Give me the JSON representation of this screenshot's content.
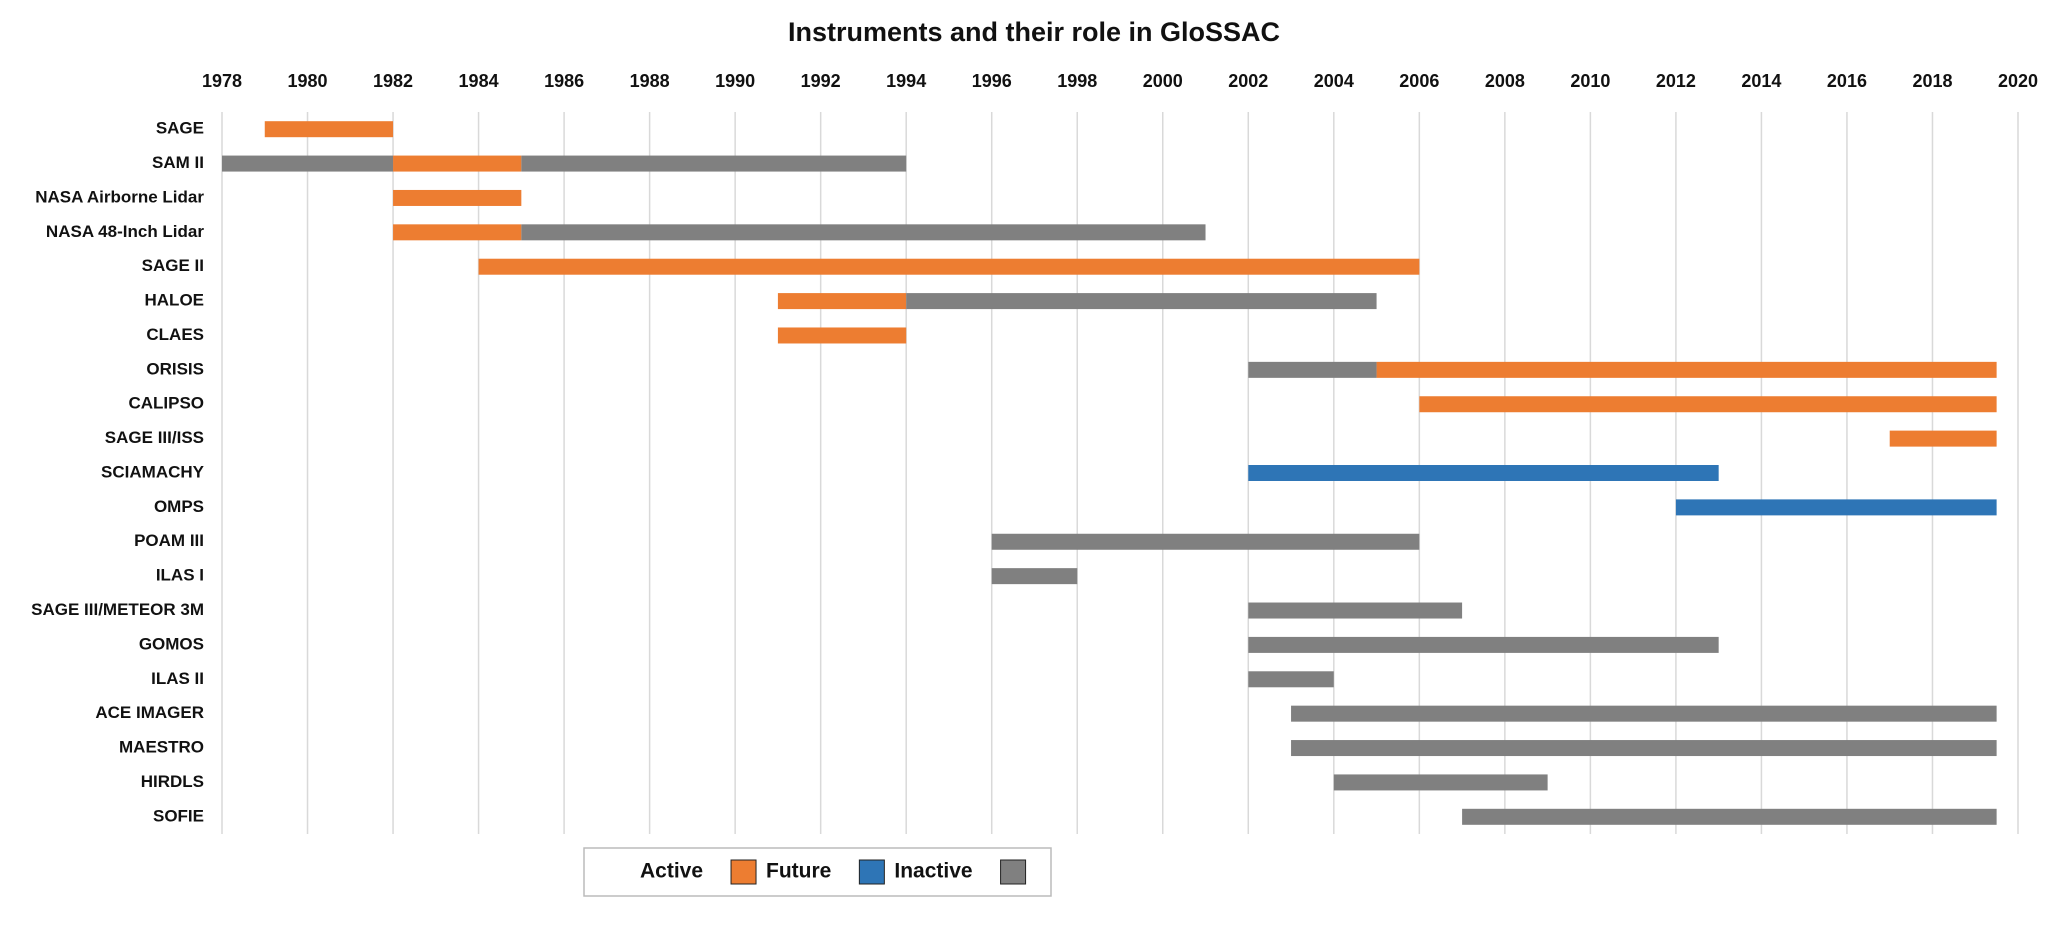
{
  "chart_data": {
    "type": "gantt",
    "title": "Instruments and their role in GloSSAC",
    "categories": [
      "SAGE",
      "SAM II",
      "NASA Airborne Lidar",
      "NASA 48-Inch Lidar",
      "SAGE II",
      "HALOE",
      "CLAES",
      "ORISIS",
      "CALIPSO",
      "SAGE III/ISS",
      "SCIAMACHY",
      "OMPS",
      "POAM III",
      "ILAS I",
      "SAGE III/METEOR 3M",
      "GOMOS",
      "ILAS II",
      "ACE IMAGER",
      "MAESTRO",
      "HIRDLS",
      "SOFIE"
    ],
    "series": [
      {
        "name": "Active",
        "color": "#ED7D31",
        "values": [
          [
            [
              1979,
              1982
            ]
          ],
          [
            [
              1982,
              1985
            ]
          ],
          [
            [
              1982,
              1985
            ]
          ],
          [
            [
              1982,
              1985
            ]
          ],
          [
            [
              1984,
              2006
            ]
          ],
          [
            [
              1991,
              1994
            ]
          ],
          [
            [
              1991,
              1994
            ]
          ],
          [
            [
              2005,
              2019.5
            ]
          ],
          [
            [
              2006,
              2019.5
            ]
          ],
          [
            [
              2017,
              2019.5
            ]
          ],
          null,
          null,
          null,
          null,
          null,
          null,
          null,
          null,
          null,
          null,
          null
        ]
      },
      {
        "name": "Future",
        "color": "#2E75B6",
        "values": [
          null,
          null,
          null,
          null,
          null,
          null,
          null,
          null,
          null,
          null,
          [
            [
              2002,
              2013
            ]
          ],
          [
            [
              2012,
              2019.5
            ]
          ],
          null,
          null,
          null,
          null,
          null,
          null,
          null,
          null,
          null
        ]
      },
      {
        "name": "Inactive",
        "color": "#808080",
        "values": [
          null,
          [
            [
              1978,
              1982
            ],
            [
              1985,
              1994
            ]
          ],
          null,
          [
            [
              1985,
              2001
            ]
          ],
          null,
          [
            [
              1994,
              2005
            ]
          ],
          null,
          [
            [
              2002,
              2005
            ]
          ],
          null,
          null,
          null,
          null,
          [
            [
              1996,
              2006
            ]
          ],
          [
            [
              1996,
              1998
            ]
          ],
          [
            [
              2002,
              2007
            ]
          ],
          [
            [
              2002,
              2013
            ]
          ],
          [
            [
              2002,
              2004
            ]
          ],
          [
            [
              2003,
              2019.5
            ]
          ],
          [
            [
              2003,
              2019.5
            ]
          ],
          [
            [
              2004,
              2009
            ]
          ],
          [
            [
              2007,
              2019.5
            ]
          ]
        ]
      }
    ],
    "xlim": [
      1978,
      2020
    ],
    "xticks": [
      1978,
      1980,
      1982,
      1984,
      1986,
      1988,
      1990,
      1992,
      1994,
      1996,
      1998,
      2000,
      2002,
      2004,
      2006,
      2008,
      2010,
      2012,
      2014,
      2016,
      2018,
      2020
    ],
    "grid": true
  }
}
